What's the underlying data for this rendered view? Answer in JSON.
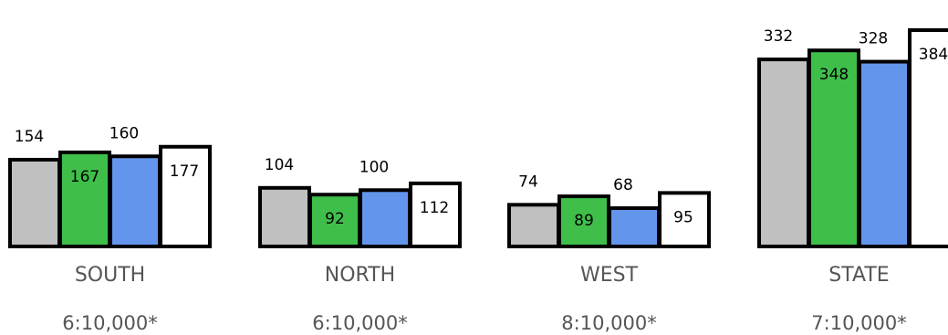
{
  "chart_data": {
    "type": "bar",
    "categories": [
      "SOUTH",
      "NORTH",
      "WEST",
      "STATE"
    ],
    "ratios": [
      "6:10,000*",
      "6:10,000*",
      "8:10,000*",
      "7:10,000*"
    ],
    "series": [
      {
        "values": [
          154,
          104,
          74,
          332
        ],
        "color": "#c0c0c0"
      },
      {
        "values": [
          167,
          92,
          89,
          348
        ],
        "color": "#3fbf4a"
      },
      {
        "values": [
          160,
          100,
          68,
          328
        ],
        "color": "#6495ed"
      },
      {
        "values": [
          177,
          112,
          95,
          384
        ],
        "color": "#ffffff"
      }
    ],
    "ylim": [
      0,
      384
    ],
    "grid": false,
    "legend": "none"
  }
}
